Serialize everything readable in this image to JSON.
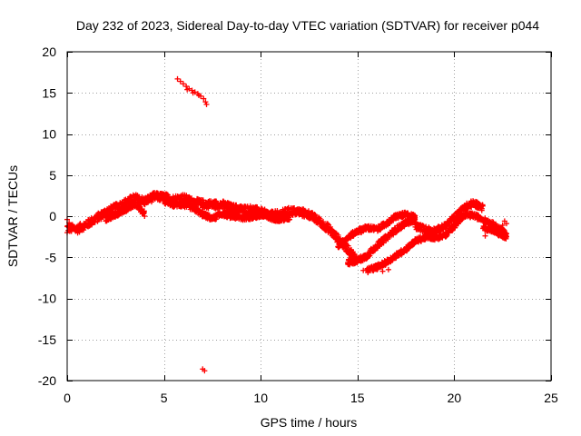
{
  "chart_data": {
    "type": "scatter",
    "title": "Day 232 of 2023, Sidereal Day-to-day VTEC variation (SDTVAR) for receiver p044",
    "xlabel": "GPS time / hours",
    "ylabel": "SDTVAR / TECUs",
    "xlim": [
      0,
      25
    ],
    "ylim": [
      -20,
      20
    ],
    "xticks": [
      "0",
      "5",
      "10",
      "15",
      "20",
      "25"
    ],
    "yticks": [
      "-20",
      "-15",
      "-10",
      "-5",
      "0",
      "5",
      "10",
      "15",
      "20"
    ],
    "grid": true,
    "marker": "+",
    "series": [
      {
        "name": "SDTVAR",
        "color": "#ff0000",
        "bands": [
          {
            "x": [
              0.0,
              0.5,
              1.0,
              1.5,
              2.0,
              2.5,
              3.0,
              3.5,
              4.0,
              4.5,
              5.0,
              5.5,
              6.0,
              6.5,
              7.0,
              7.5,
              8.0,
              8.5,
              9.0,
              9.5,
              10.0,
              10.5,
              11.0,
              11.5,
              12.0,
              12.5,
              13.0,
              13.5,
              14.0,
              14.5,
              15.0
            ],
            "y": [
              -1.4,
              -1.6,
              -1.0,
              -0.3,
              0.5,
              1.0,
              1.6,
              2.2,
              1.8,
              2.4,
              2.3,
              2.0,
              2.2,
              1.7,
              1.5,
              1.4,
              1.4,
              1.0,
              0.8,
              0.8,
              0.5,
              0.1,
              0.2,
              0.6,
              0.5,
              0.2,
              -0.6,
              -1.5,
              -2.8,
              -4.0,
              -5.4
            ],
            "spread": 1.0
          },
          {
            "x": [
              2.0,
              2.5,
              3.0,
              3.5,
              4.0
            ],
            "y": [
              -0.4,
              0.2,
              0.8,
              1.5,
              0.3
            ],
            "spread": 0.6
          },
          {
            "x": [
              5.0,
              5.5,
              6.0,
              6.5,
              7.0,
              7.5,
              8.0,
              8.5,
              9.0,
              9.5,
              10.0,
              10.5,
              11.0,
              11.5
            ],
            "y": [
              1.8,
              1.4,
              1.4,
              1.0,
              0.2,
              -0.3,
              0.3,
              0.0,
              -0.2,
              -0.1,
              0.1,
              -0.2,
              -0.4,
              -0.2
            ],
            "spread": 0.6
          },
          {
            "x": [
              14.0,
              14.5,
              15.0,
              15.5,
              16.0,
              16.5,
              17.0,
              17.5,
              18.0
            ],
            "y": [
              -3.6,
              -2.6,
              -1.8,
              -1.4,
              -1.6,
              -0.9,
              0.0,
              0.2,
              -0.1
            ],
            "spread": 0.6
          },
          {
            "x": [
              14.5,
              15.0,
              15.5,
              16.0,
              16.5,
              17.0,
              17.5,
              18.0
            ],
            "y": [
              -5.6,
              -5.4,
              -4.8,
              -3.6,
              -2.6,
              -1.6,
              -0.8,
              -0.4
            ],
            "spread": 0.7
          },
          {
            "x": [
              15.5,
              16.0,
              16.5,
              17.0,
              17.5,
              18.0,
              18.5,
              19.0
            ],
            "y": [
              -6.6,
              -6.2,
              -5.6,
              -4.8,
              -4.0,
              -3.0,
              -2.6,
              -2.2
            ],
            "spread": 0.6
          },
          {
            "x": [
              18.0,
              18.5,
              19.0,
              19.5,
              20.0,
              20.5,
              21.0,
              21.5
            ],
            "y": [
              -1.2,
              -1.6,
              -1.8,
              -1.3,
              -0.2,
              1.0,
              1.6,
              1.0
            ],
            "spread": 0.8
          },
          {
            "x": [
              18.5,
              19.0,
              19.5,
              20.0,
              20.5,
              21.0,
              21.5,
              22.0,
              22.5,
              22.7
            ],
            "y": [
              -2.4,
              -2.6,
              -2.4,
              -1.2,
              0.1,
              0.1,
              -0.4,
              -1.0,
              -1.8,
              -2.2
            ],
            "spread": 0.6
          },
          {
            "x": [
              21.5,
              22.0,
              22.5,
              22.7
            ],
            "y": [
              -1.4,
              -1.8,
              -2.4,
              -2.6
            ],
            "spread": 0.5
          }
        ],
        "points": [
          [
            5.7,
            16.7
          ],
          [
            5.85,
            16.4
          ],
          [
            6.0,
            16.1
          ],
          [
            6.15,
            15.8
          ],
          [
            6.3,
            15.5
          ],
          [
            6.45,
            15.3
          ],
          [
            6.6,
            15.1
          ],
          [
            6.75,
            14.9
          ],
          [
            6.9,
            14.6
          ],
          [
            7.05,
            14.3
          ],
          [
            7.15,
            13.9
          ],
          [
            7.2,
            13.6
          ],
          [
            6.2,
            15.4
          ],
          [
            6.5,
            15.0
          ],
          [
            6.8,
            14.7
          ],
          [
            7.0,
            -18.6
          ],
          [
            7.1,
            -18.8
          ],
          [
            15.2,
            -2.0
          ],
          [
            15.4,
            -1.6
          ],
          [
            15.6,
            -1.4
          ],
          [
            15.7,
            -1.2
          ],
          [
            15.3,
            -6.6
          ],
          [
            15.6,
            -6.4
          ],
          [
            16.3,
            -6.7
          ],
          [
            16.6,
            -6.5
          ],
          [
            22.6,
            -0.6
          ],
          [
            22.7,
            -0.9
          ],
          [
            22.5,
            -1.1
          ],
          [
            22.6,
            -2.7
          ],
          [
            22.7,
            -2.5
          ],
          [
            21.6,
            -2.4
          ],
          [
            0.0,
            -0.4
          ],
          [
            0.1,
            -0.8
          ],
          [
            0.0,
            -2.0
          ],
          [
            4.0,
            0.0
          ],
          [
            3.9,
            0.5
          ],
          [
            3.95,
            0.3
          ]
        ]
      }
    ]
  }
}
